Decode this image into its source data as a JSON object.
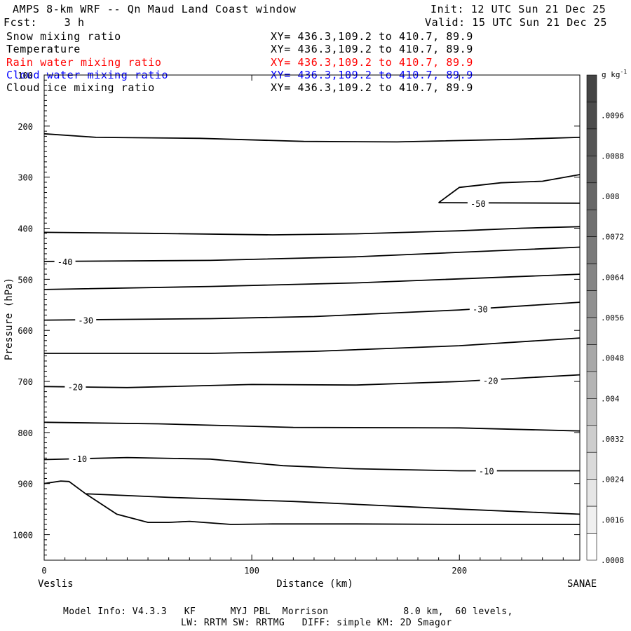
{
  "header": {
    "title": "AMPS 8-km WRF -- Qn Maud Land Coast window",
    "init": "Init: 12 UTC Sun 21 Dec 25",
    "fcst": "Fcst:    3 h",
    "valid": "Valid: 15 UTC Sun 21 Dec 25"
  },
  "fields": [
    {
      "label": "Snow mixing ratio",
      "xy": "XY= 436.3,109.2 to 410.7, 89.9",
      "color": "#000000"
    },
    {
      "label": "Temperature",
      "xy": "XY= 436.3,109.2 to 410.7, 89.9",
      "color": "#000000"
    },
    {
      "label": "Rain water mixing ratio",
      "xy": "XY= 436.3,109.2 to 410.7, 89.9",
      "color": "#ff0000"
    },
    {
      "label": "Cloud water mixing ratio",
      "xy": "XY= 436.3,109.2 to 410.7, 89.9",
      "color": "#0000ff"
    },
    {
      "label": "Cloud ice mixing ratio",
      "xy": "XY= 436.3,109.2 to 410.7, 89.9",
      "color": "#000000"
    }
  ],
  "footer": {
    "line1": "Model Info: V4.3.3   KF      MYJ PBL  Morrison             8.0 km,  60 levels,",
    "line2": "LW: RRTM SW: RRTMG   DIFF: simple KM: 2D Smagor"
  },
  "chart_data": {
    "type": "line",
    "xlabel": "Distance (km)",
    "ylabel": "Pressure (hPa)",
    "xlim": [
      0,
      258
    ],
    "ylim": [
      1050,
      100
    ],
    "y_inverted": true,
    "x_ticks": [
      0,
      100,
      200
    ],
    "y_ticks": [
      100,
      200,
      300,
      400,
      500,
      600,
      700,
      800,
      900,
      1000
    ],
    "endpoints": {
      "left": "Veslis",
      "right": "SANAE"
    },
    "colorbar": {
      "unit": "g kg-1",
      "ticks": [
        ".0096",
        ".0088",
        ".008",
        ".0072",
        ".0064",
        ".0056",
        ".0048",
        ".004",
        ".0032",
        ".0024",
        ".0016",
        ".0008"
      ],
      "colors": [
        "#444444",
        "#4c4c4c",
        "#555555",
        "#5e5e5e",
        "#676767",
        "#707070",
        "#7a7a7a",
        "#858585",
        "#909090",
        "#9c9c9c",
        "#a8a8a8",
        "#b4b4b4",
        "#c1c1c1",
        "#cdcdcd",
        "#dadada",
        "#e6e6e6",
        "#f0f0f0",
        "#ffffff"
      ]
    },
    "series": [
      {
        "points": [
          [
            0,
            215
          ],
          [
            25,
            222
          ],
          [
            75,
            224
          ],
          [
            125,
            230
          ],
          [
            170,
            231
          ],
          [
            225,
            226
          ],
          [
            258,
            222
          ]
        ]
      },
      {
        "points": [
          [
            190,
            350
          ],
          [
            200,
            320
          ],
          [
            220,
            311
          ],
          [
            240,
            308
          ],
          [
            258,
            295
          ]
        ]
      },
      {
        "points": [
          [
            190,
            350
          ],
          [
            258,
            351
          ]
        ]
      },
      {
        "points": [
          [
            0,
            408
          ],
          [
            50,
            410
          ],
          [
            110,
            413
          ],
          [
            150,
            411
          ],
          [
            200,
            405
          ],
          [
            230,
            400
          ],
          [
            258,
            397
          ]
        ]
      },
      {
        "points": [
          [
            0,
            465
          ],
          [
            80,
            463
          ],
          [
            150,
            456
          ],
          [
            258,
            437
          ]
        ]
      },
      {
        "points": [
          [
            0,
            520
          ],
          [
            80,
            514
          ],
          [
            150,
            507
          ],
          [
            258,
            490
          ]
        ]
      },
      {
        "points": [
          [
            0,
            580
          ],
          [
            80,
            577
          ],
          [
            130,
            573
          ],
          [
            200,
            560
          ],
          [
            258,
            545
          ]
        ]
      },
      {
        "points": [
          [
            0,
            645
          ],
          [
            80,
            645
          ],
          [
            130,
            641
          ],
          [
            200,
            630
          ],
          [
            258,
            615
          ]
        ]
      },
      {
        "points": [
          [
            0,
            710
          ],
          [
            40,
            712
          ],
          [
            100,
            706
          ],
          [
            150,
            707
          ],
          [
            200,
            700
          ],
          [
            258,
            687
          ]
        ]
      },
      {
        "points": [
          [
            0,
            780
          ],
          [
            55,
            783
          ],
          [
            120,
            790
          ],
          [
            200,
            791
          ],
          [
            258,
            797
          ]
        ]
      },
      {
        "points": [
          [
            0,
            853
          ],
          [
            40,
            849
          ],
          [
            80,
            852
          ],
          [
            115,
            865
          ],
          [
            150,
            871
          ],
          [
            200,
            875
          ],
          [
            258,
            875
          ]
        ]
      },
      {
        "points": [
          [
            0,
            900
          ],
          [
            8,
            895
          ],
          [
            12,
            896
          ],
          [
            20,
            920
          ],
          [
            60,
            927
          ],
          [
            120,
            935
          ],
          [
            200,
            950
          ],
          [
            258,
            960
          ]
        ]
      },
      {
        "points": [
          [
            20,
            920
          ],
          [
            35,
            960
          ],
          [
            50,
            976
          ],
          [
            60,
            976
          ],
          [
            70,
            974
          ],
          [
            90,
            980
          ],
          [
            110,
            979
          ],
          [
            150,
            979
          ],
          [
            200,
            980
          ],
          [
            258,
            980
          ]
        ]
      }
    ],
    "contour_labels": [
      {
        "text": "-50",
        "x": 209,
        "y": 351
      },
      {
        "text": "-40",
        "x": 10,
        "y": 465
      },
      {
        "text": "-30",
        "x": 20,
        "y": 580
      },
      {
        "text": "-30",
        "x": 210,
        "y": 558
      },
      {
        "text": "-20",
        "x": 15,
        "y": 710
      },
      {
        "text": "-20",
        "x": 215,
        "y": 698
      },
      {
        "text": "-10",
        "x": 17,
        "y": 851
      },
      {
        "text": "-10",
        "x": 213,
        "y": 875
      }
    ]
  }
}
